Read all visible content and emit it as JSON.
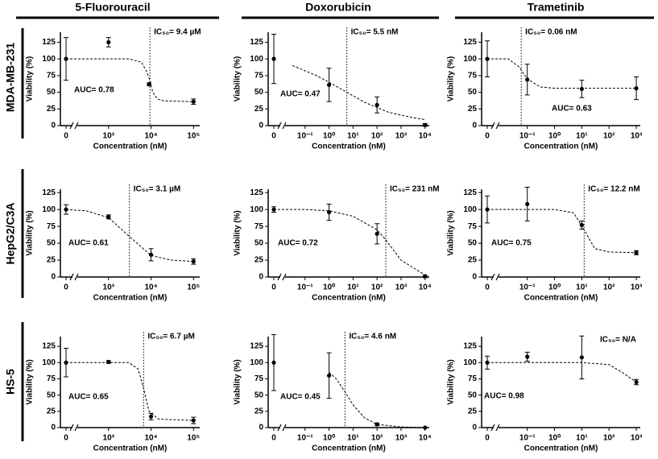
{
  "column_titles": [
    "5-Fluorouracil",
    "Doxorubicin",
    "Trametinib"
  ],
  "row_titles": [
    "MDA-MB-231",
    "HepG2/C3A",
    "HS-5"
  ],
  "chart_data": [
    {
      "type": "scatter",
      "color": "#000000",
      "xlabel": "Concentration (nM)",
      "ylabel": "Viability (%)",
      "xscale": "log",
      "xlim": [
        100,
        140000
      ],
      "xticks": [
        0,
        {
          "value": 1000,
          "label": "10³"
        },
        {
          "value": 10000,
          "label": "10⁴"
        },
        {
          "value": 100000,
          "label": "10⁵"
        }
      ],
      "ylim": [
        0,
        140
      ],
      "yticks": [
        0,
        25,
        50,
        75,
        100,
        125
      ],
      "x": [
        0,
        1000,
        9000,
        100000
      ],
      "values": [
        100,
        125,
        62,
        36
      ],
      "errors": [
        32,
        7,
        2,
        4
      ],
      "fit": {
        "x": [
          0,
          3000,
          6000,
          8000,
          9400,
          11000,
          14000,
          20000,
          100000
        ],
        "values": [
          100,
          100,
          95,
          80,
          68,
          50,
          40,
          37,
          36
        ]
      },
      "ic50": 9400,
      "ic50_label": "IC₅₀= 9.4 µM",
      "auc_label": "AUC= 0.78"
    },
    {
      "type": "scatter",
      "color": "#000000",
      "xlabel": "Concentration (nM)",
      "ylabel": "Viability (%)",
      "xscale": "log",
      "xlim": [
        0.005,
        15000
      ],
      "xticks": [
        0,
        {
          "value": 0.1,
          "label": "10⁻¹"
        },
        {
          "value": 1,
          "label": "10⁰"
        },
        {
          "value": 10,
          "label": "10¹"
        },
        {
          "value": 100,
          "label": "10²"
        },
        {
          "value": 1000,
          "label": "10³"
        },
        {
          "value": 10000,
          "label": "10⁴"
        }
      ],
      "ylim": [
        0,
        140
      ],
      "yticks": [
        0,
        25,
        50,
        75,
        100,
        125
      ],
      "x": [
        0,
        1,
        100,
        10000
      ],
      "values": [
        100,
        61,
        31,
        1
      ],
      "errors": [
        37,
        25,
        12,
        2
      ],
      "fit": {
        "x": [
          0.03,
          0.3,
          1,
          5.5,
          30,
          300,
          3000,
          10000
        ],
        "values": [
          90,
          75,
          65,
          50,
          35,
          20,
          12,
          9
        ]
      },
      "ic50": 5.5,
      "ic50_label": "IC₅₀= 5.5 nM",
      "auc_label": "AUC= 0.47"
    },
    {
      "type": "scatter",
      "color": "#000000",
      "xlabel": "Concentration (nM)",
      "ylabel": "Viability (%)",
      "xscale": "log",
      "xlim": [
        0.0034,
        1400
      ],
      "xticks": [
        0,
        {
          "value": 0.1,
          "label": "10⁻¹"
        },
        {
          "value": 1,
          "label": "10⁰"
        },
        {
          "value": 10,
          "label": "10¹"
        },
        {
          "value": 100,
          "label": "10²"
        },
        {
          "value": 1000,
          "label": "10³"
        }
      ],
      "ylim": [
        0,
        140
      ],
      "yticks": [
        0,
        25,
        50,
        75,
        100,
        125
      ],
      "x": [
        0,
        0.1,
        10,
        1000
      ],
      "values": [
        100,
        69,
        55,
        56
      ],
      "errors": [
        27,
        23,
        13,
        17
      ],
      "fit": {
        "x": [
          0,
          0.02,
          0.05,
          0.1,
          0.3,
          1,
          1000
        ],
        "values": [
          100,
          100,
          88,
          70,
          58,
          56,
          56
        ]
      },
      "ic50": 0.06,
      "ic50_label": "IC₅₀= 0.06 nM",
      "auc_label": "AUC= 0.63"
    },
    {
      "type": "scatter",
      "color": "#000000",
      "xlabel": "Concentration (nM)",
      "ylabel": "Viability (%)",
      "xscale": "log",
      "xlim": [
        100,
        140000
      ],
      "xticks": [
        0,
        {
          "value": 1000,
          "label": "10³"
        },
        {
          "value": 10000,
          "label": "10⁴"
        },
        {
          "value": 100000,
          "label": "10⁵"
        }
      ],
      "ylim": [
        0,
        130
      ],
      "yticks": [
        0,
        25,
        50,
        75,
        100,
        125
      ],
      "x": [
        0,
        1000,
        10000,
        100000
      ],
      "values": [
        100,
        89,
        33,
        23
      ],
      "errors": [
        7,
        3,
        9,
        4
      ],
      "fit": {
        "x": [
          0,
          300,
          1000,
          3100,
          10000,
          30000,
          100000
        ],
        "values": [
          100,
          98,
          88,
          60,
          32,
          25,
          23
        ]
      },
      "ic50": 3100,
      "ic50_label": "IC₅₀= 3.1 µM",
      "auc_label": "AUC= 0.61"
    },
    {
      "type": "scatter",
      "color": "#000000",
      "xlabel": "Concentration (nM)",
      "ylabel": "Viability (%)",
      "xscale": "log",
      "xlim": [
        0.005,
        15000
      ],
      "xticks": [
        0,
        {
          "value": 0.1,
          "label": "10⁻¹"
        },
        {
          "value": 1,
          "label": "10⁰"
        },
        {
          "value": 10,
          "label": "10¹"
        },
        {
          "value": 100,
          "label": "10²"
        },
        {
          "value": 1000,
          "label": "10³"
        },
        {
          "value": 10000,
          "label": "10⁴"
        }
      ],
      "ylim": [
        0,
        130
      ],
      "yticks": [
        0,
        25,
        50,
        75,
        100,
        125
      ],
      "x": [
        0,
        1,
        100,
        10000
      ],
      "values": [
        100,
        96,
        64,
        1
      ],
      "errors": [
        4,
        12,
        15,
        2
      ],
      "fit": {
        "x": [
          0,
          0.1,
          1,
          10,
          100,
          231,
          1000,
          10000
        ],
        "values": [
          100,
          100,
          98,
          90,
          70,
          55,
          25,
          3
        ]
      },
      "ic50": 231,
      "ic50_label": "IC₅₀= 231 nM",
      "auc_label": "AUC= 0.72"
    },
    {
      "type": "scatter",
      "color": "#000000",
      "xlabel": "Concentration (nM)",
      "ylabel": "Viability (%)",
      "xscale": "log",
      "xlim": [
        0.0034,
        1400
      ],
      "xticks": [
        0,
        {
          "value": 0.1,
          "label": "10⁻¹"
        },
        {
          "value": 1,
          "label": "10⁰"
        },
        {
          "value": 10,
          "label": "10¹"
        },
        {
          "value": 100,
          "label": "10²"
        },
        {
          "value": 1000,
          "label": "10³"
        }
      ],
      "ylim": [
        0,
        130
      ],
      "yticks": [
        0,
        25,
        50,
        75,
        100,
        125
      ],
      "x": [
        0,
        0.1,
        10,
        1000
      ],
      "values": [
        100,
        108,
        77,
        36
      ],
      "errors": [
        20,
        25,
        6,
        3
      ],
      "fit": {
        "x": [
          0,
          1,
          5,
          12.2,
          30,
          100,
          1000
        ],
        "values": [
          100,
          100,
          95,
          70,
          42,
          37,
          36
        ]
      },
      "ic50": 12.2,
      "ic50_label": "IC₅₀= 12.2 nM",
      "auc_label": "AUC=  0.75"
    },
    {
      "type": "scatter",
      "color": "#000000",
      "xlabel": "Concentration (nM)",
      "ylabel": "Viability (%)",
      "xscale": "log",
      "xlim": [
        100,
        140000
      ],
      "xticks": [
        0,
        {
          "value": 1000,
          "label": "10³"
        },
        {
          "value": 10000,
          "label": "10⁴"
        },
        {
          "value": 100000,
          "label": "10⁵"
        }
      ],
      "ylim": [
        0,
        140
      ],
      "yticks": [
        0,
        25,
        50,
        75,
        100,
        125
      ],
      "x": [
        0,
        1000,
        10000,
        100000
      ],
      "values": [
        100,
        101,
        17,
        11
      ],
      "errors": [
        22,
        2,
        5,
        5
      ],
      "fit": {
        "x": [
          0,
          3000,
          5000,
          6700,
          9000,
          15000,
          100000
        ],
        "values": [
          100,
          100,
          90,
          60,
          25,
          13,
          11
        ]
      },
      "ic50": 6700,
      "ic50_label": "IC₅₀= 6.7 µM",
      "auc_label": "AUC= 0.65"
    },
    {
      "type": "scatter",
      "color": "#000000",
      "xlabel": "Concentration (nM)",
      "ylabel": "Viability (%)",
      "xscale": "log",
      "xlim": [
        0.005,
        15000
      ],
      "xticks": [
        0,
        {
          "value": 0.1,
          "label": "10⁻¹"
        },
        {
          "value": 1,
          "label": "10⁰"
        },
        {
          "value": 10,
          "label": "10¹"
        },
        {
          "value": 100,
          "label": "10²"
        },
        {
          "value": 1000,
          "label": "10³"
        },
        {
          "value": 10000,
          "label": "10⁴"
        }
      ],
      "ylim": [
        0,
        140
      ],
      "yticks": [
        0,
        25,
        50,
        75,
        100,
        125
      ],
      "x": [
        0,
        1,
        100,
        10000
      ],
      "values": [
        100,
        80,
        5,
        0
      ],
      "errors": [
        43,
        35,
        2,
        0
      ],
      "fit": {
        "x": [
          1,
          2,
          4.6,
          10,
          30,
          100,
          1000,
          10000
        ],
        "values": [
          85,
          75,
          55,
          35,
          15,
          5,
          1,
          0
        ]
      },
      "ic50": 4.6,
      "ic50_label": "IC₅₀= 4.6 nM",
      "auc_label": "AUC= 0.45"
    },
    {
      "type": "scatter",
      "color": "#000000",
      "xlabel": "Concentration (nM)",
      "ylabel": "Viability (%)",
      "xscale": "log",
      "xlim": [
        0.0034,
        1400
      ],
      "xticks": [
        0,
        {
          "value": 0.1,
          "label": "10⁻¹"
        },
        {
          "value": 1,
          "label": "10⁰"
        },
        {
          "value": 10,
          "label": "10¹"
        },
        {
          "value": 100,
          "label": "10²"
        },
        {
          "value": 1000,
          "label": "10³"
        }
      ],
      "ylim": [
        0,
        140
      ],
      "yticks": [
        0,
        25,
        50,
        75,
        100,
        125
      ],
      "x": [
        0,
        0.1,
        10,
        1000
      ],
      "values": [
        100,
        109,
        108,
        70
      ],
      "errors": [
        10,
        7,
        33,
        4
      ],
      "fit": {
        "x": [
          0,
          10,
          100,
          300,
          1000
        ],
        "values": [
          100,
          100,
          97,
          85,
          70
        ]
      },
      "ic50_label": "IC₅₀= N/A",
      "auc_label": "AUC= 0.98"
    }
  ]
}
